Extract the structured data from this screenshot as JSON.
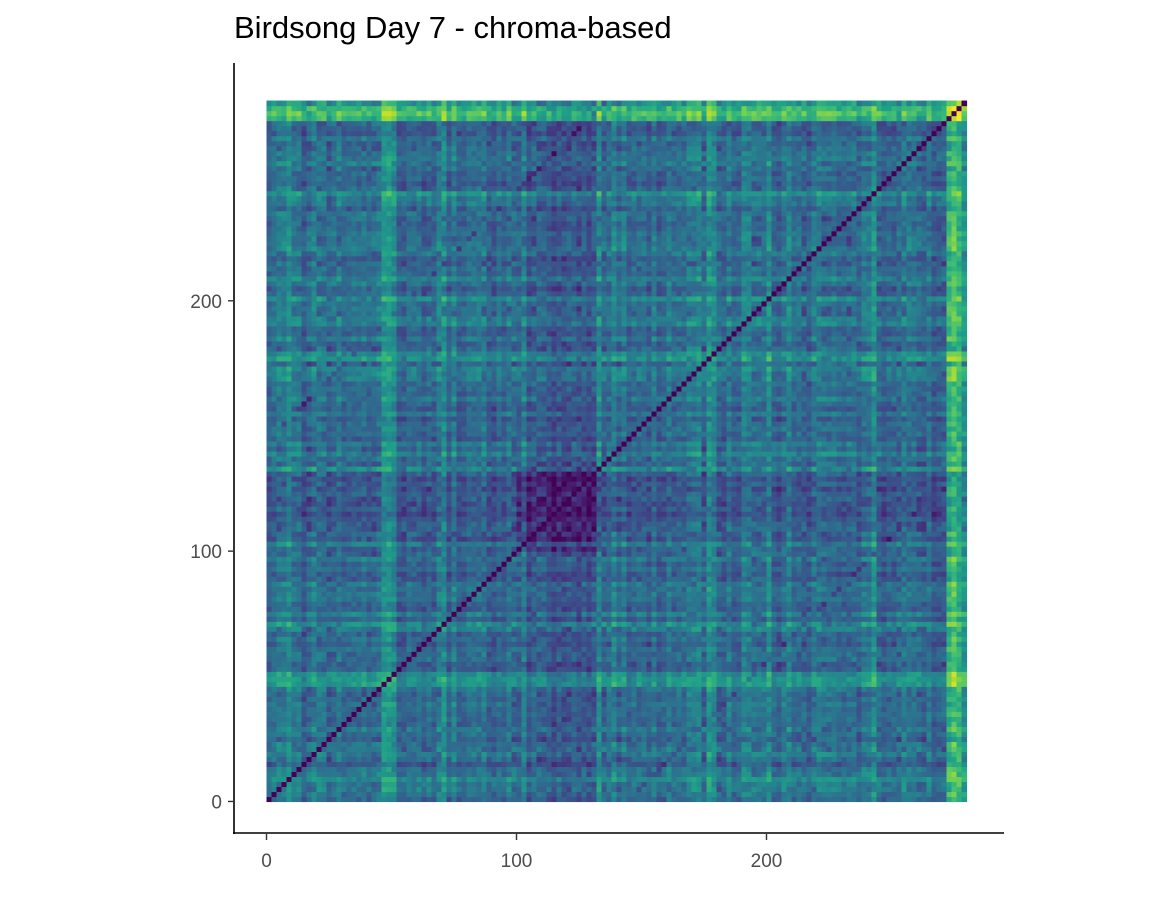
{
  "chart_data": {
    "type": "heatmap",
    "title": "Birdsong Day 7 - chroma-based",
    "xlabel": "",
    "ylabel": "",
    "x_range": [
      0,
      280
    ],
    "y_range": [
      0,
      280
    ],
    "xlim": [
      -13,
      295
    ],
    "ylim": [
      -13,
      295
    ],
    "x_ticks": [
      0,
      100,
      200
    ],
    "y_ticks": [
      0,
      100,
      200
    ],
    "x_tick_labels": [
      "0",
      "100",
      "200"
    ],
    "y_tick_labels": [
      "0",
      "100",
      "200"
    ],
    "colormap": "viridis",
    "colormap_stops": [
      "#440154",
      "#482878",
      "#3e4a89",
      "#31688e",
      "#26828e",
      "#1f9e89",
      "#35b779",
      "#6ece58",
      "#b5de2b",
      "#fde725"
    ],
    "diagonal_value": 0,
    "grid": false,
    "legend": "none",
    "structure_notes": "self-similarity matrix: dark main diagonal; dark blocks near x,y 100-135; bright vertical bands near x 48-50, 193, 272-280; bright horizontal bands near y 50, 275"
  }
}
